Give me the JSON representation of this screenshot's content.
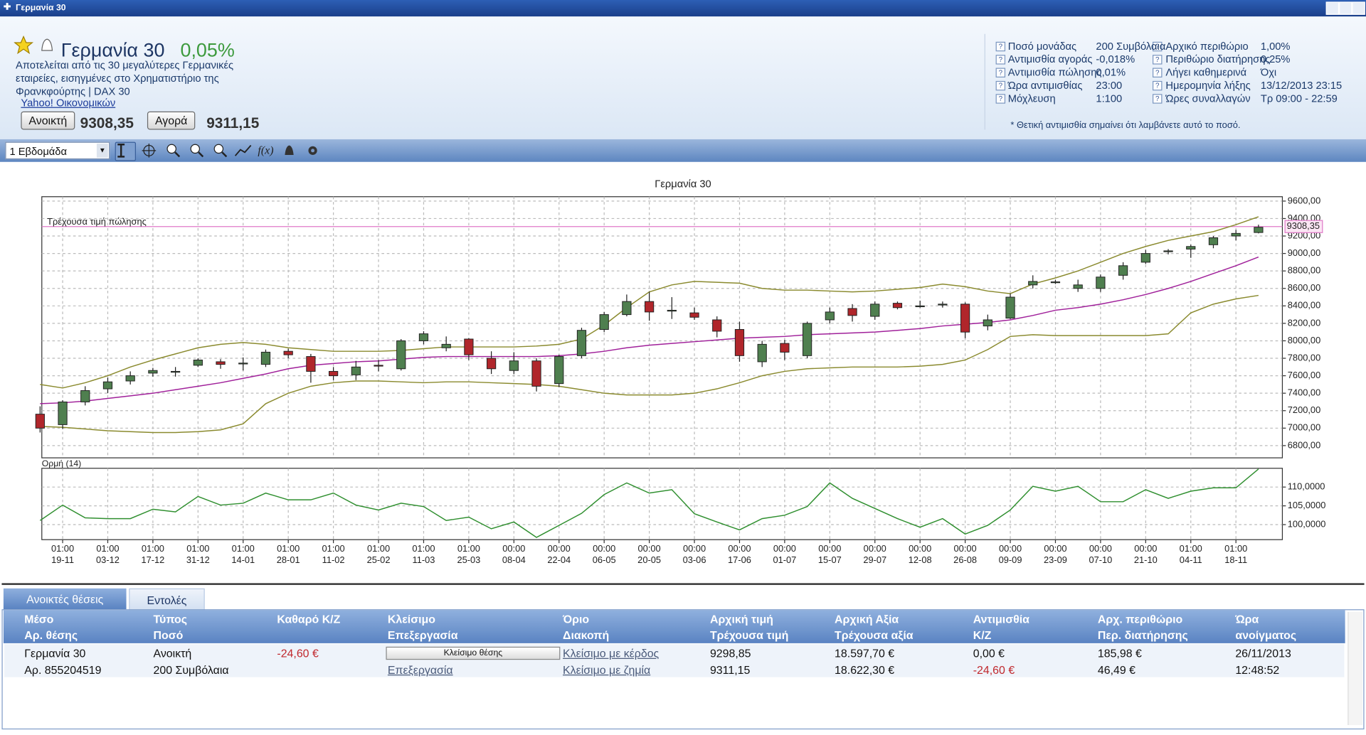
{
  "window": {
    "title": "Γερμανία 30"
  },
  "header": {
    "name": "Γερμανία 30",
    "change": "0,05%",
    "description": "Αποτελείται από τις 30 μεγαλύτερες Γερμανικές εταιρείες, εισηγμένες στο Χρηματιστήριο της Φρανκφούρτης | DAX 30",
    "source": "Yahoo! Οικονομικών",
    "sell_button": "Ανοικτή",
    "sell_price": "9308,35",
    "buy_button": "Αγορά",
    "buy_price": "9311,15"
  },
  "details": {
    "rows": [
      [
        "Ποσό μονάδας",
        "200 Συμβόλαια",
        "Αρχικό περιθώριο",
        "1,00%"
      ],
      [
        "Αντιμισθία αγοράς",
        "-0,018%",
        "Περιθώριο διατήρησης",
        "0,25%"
      ],
      [
        "Αντιμισθία πώλησης",
        "0,01%",
        "Λήγει καθημερινά",
        "Όχι"
      ],
      [
        "Ώρα αντιμισθίας",
        "23:00",
        "Ημερομηνία λήξης",
        "13/12/2013  23:15"
      ],
      [
        "Μόχλευση",
        "1:100",
        "Ώρες συναλλαγών",
        "Τρ 09:00 - 22:59"
      ]
    ],
    "note": "* Θετική αντιμισθία σημαίνει ότι λαμβάνετε αυτό το ποσό."
  },
  "toolbar": {
    "period": "1 Εβδομάδα"
  },
  "chart_data": {
    "type": "candlestick",
    "title": "Γερμανία 30",
    "grid": true,
    "up_color": "#4f7f4f",
    "down_color": "#b0262b",
    "categories": [
      null,
      "19-11",
      null,
      "03-12",
      null,
      "17-12",
      null,
      "31-12",
      null,
      "14-01",
      null,
      "28-01",
      null,
      "11-02",
      null,
      "25-02",
      null,
      "11-03",
      null,
      "25-03",
      null,
      "08-04",
      null,
      "22-04",
      null,
      "06-05",
      null,
      "20-05",
      null,
      "03-06",
      null,
      "17-06",
      null,
      "01-07",
      null,
      "15-07",
      null,
      "29-07",
      null,
      "12-08",
      null,
      "26-08",
      null,
      "09-09",
      null,
      "23-09",
      null,
      "07-10",
      null,
      "21-10",
      null,
      "04-11",
      null,
      "18-11",
      null
    ],
    "category_times": [
      null,
      "01:00",
      null,
      "01:00",
      null,
      "01:00",
      null,
      "01:00",
      null,
      "01:00",
      null,
      "01:00",
      null,
      "01:00",
      null,
      "01:00",
      null,
      "01:00",
      null,
      "01:00",
      null,
      "00:00",
      null,
      "00:00",
      null,
      "00:00",
      null,
      "00:00",
      null,
      "00:00",
      null,
      "00:00",
      null,
      "00:00",
      null,
      "00:00",
      null,
      "00:00",
      null,
      "00:00",
      null,
      "00:00",
      null,
      "00:00",
      null,
      "00:00",
      null,
      "00:00",
      null,
      "00:00",
      null,
      "01:00",
      null,
      "01:00",
      null
    ],
    "open": [
      7160,
      7040,
      7300,
      7450,
      7540,
      7630,
      7640,
      7720,
      7760,
      7740,
      7730,
      7880,
      7820,
      7650,
      7610,
      7720,
      7680,
      8000,
      7920,
      8020,
      7800,
      7660,
      7770,
      7510,
      7830,
      8130,
      8300,
      8450,
      8340,
      8320,
      8240,
      8130,
      7760,
      7970,
      7830,
      8240,
      8370,
      8280,
      8430,
      8390,
      8410,
      8420,
      8170,
      8260,
      8640,
      8670,
      8600,
      8600,
      8750,
      8900,
      9020,
      9050,
      9100,
      9200,
      9240
    ],
    "high": [
      7250,
      7320,
      7480,
      7580,
      7650,
      7690,
      7700,
      7800,
      7790,
      7810,
      7900,
      7910,
      7850,
      7700,
      7770,
      7780,
      8020,
      8110,
      8050,
      8030,
      7880,
      7870,
      7800,
      7840,
      8150,
      8330,
      8530,
      8560,
      8500,
      8380,
      8280,
      8220,
      8000,
      8010,
      8220,
      8380,
      8420,
      8450,
      8450,
      8460,
      8450,
      8440,
      8300,
      8540,
      8750,
      8700,
      8700,
      8760,
      8900,
      9040,
      9050,
      9100,
      9200,
      9270,
      9330
    ],
    "low": [
      6950,
      6990,
      7260,
      7400,
      7500,
      7590,
      7590,
      7700,
      7680,
      7660,
      7700,
      7800,
      7520,
      7550,
      7550,
      7650,
      7660,
      7960,
      7880,
      7780,
      7620,
      7620,
      7420,
      7470,
      7800,
      8100,
      8280,
      8230,
      8250,
      8240,
      8040,
      7760,
      7700,
      7780,
      7800,
      8200,
      8220,
      8240,
      8360,
      8380,
      8380,
      8030,
      8120,
      8250,
      8600,
      8650,
      8560,
      8560,
      8700,
      8880,
      8990,
      8950,
      9060,
      9150,
      9230
    ],
    "close": [
      7000,
      7300,
      7430,
      7530,
      7600,
      7660,
      7650,
      7780,
      7730,
      7745,
      7870,
      7840,
      7650,
      7600,
      7700,
      7710,
      8000,
      8080,
      7960,
      7840,
      7680,
      7770,
      7480,
      7820,
      8120,
      8300,
      8450,
      8330,
      8350,
      8270,
      8110,
      7830,
      7960,
      7870,
      8200,
      8330,
      8290,
      8420,
      8380,
      8400,
      8420,
      8100,
      8240,
      8500,
      8680,
      8675,
      8640,
      8730,
      8860,
      9000,
      9030,
      9080,
      9180,
      9230,
      9300
    ],
    "upper_band": {
      "color": "#8a8a2e",
      "values": [
        7500,
        7460,
        7520,
        7600,
        7700,
        7780,
        7850,
        7920,
        7960,
        7980,
        7960,
        7920,
        7900,
        7880,
        7880,
        7880,
        7890,
        7910,
        7930,
        7930,
        7930,
        7930,
        7940,
        7960,
        8020,
        8180,
        8380,
        8560,
        8640,
        8680,
        8670,
        8660,
        8600,
        8580,
        8580,
        8570,
        8560,
        8570,
        8590,
        8610,
        8650,
        8620,
        8570,
        8540,
        8650,
        8720,
        8800,
        8900,
        9000,
        9080,
        9150,
        9200,
        9250,
        9330,
        9420
      ]
    },
    "middle_band": {
      "color": "#a0209a",
      "values": [
        7280,
        7290,
        7310,
        7340,
        7370,
        7400,
        7440,
        7480,
        7520,
        7570,
        7620,
        7680,
        7720,
        7740,
        7760,
        7770,
        7790,
        7810,
        7820,
        7820,
        7820,
        7820,
        7820,
        7830,
        7850,
        7880,
        7920,
        7950,
        7970,
        7990,
        8010,
        8030,
        8040,
        8050,
        8070,
        8080,
        8090,
        8100,
        8120,
        8140,
        8170,
        8190,
        8210,
        8240,
        8290,
        8350,
        8380,
        8420,
        8470,
        8530,
        8600,
        8680,
        8770,
        8860,
        8960
      ]
    },
    "lower_band": {
      "color": "#8a8a2e",
      "values": [
        7020,
        7010,
        6990,
        6970,
        6960,
        6950,
        6950,
        6960,
        6980,
        7050,
        7280,
        7400,
        7480,
        7520,
        7540,
        7540,
        7530,
        7520,
        7530,
        7530,
        7520,
        7510,
        7500,
        7480,
        7440,
        7400,
        7380,
        7380,
        7380,
        7400,
        7450,
        7520,
        7600,
        7650,
        7680,
        7690,
        7700,
        7700,
        7700,
        7710,
        7730,
        7780,
        7900,
        8050,
        8070,
        8060,
        8060,
        8060,
        8060,
        8060,
        8080,
        8320,
        8420,
        8480,
        8520
      ]
    },
    "ylim": [
      6660,
      9650
    ],
    "yticks": [
      {
        "value": 6800,
        "label": "6800,00"
      },
      {
        "value": 7000,
        "label": "7000,00"
      },
      {
        "value": 7200,
        "label": "7200,00"
      },
      {
        "value": 7400,
        "label": "7400,00"
      },
      {
        "value": 7600,
        "label": "7600,00"
      },
      {
        "value": 7800,
        "label": "7800,00"
      },
      {
        "value": 8000,
        "label": "8000,00"
      },
      {
        "value": 8200,
        "label": "8200,00"
      },
      {
        "value": 8400,
        "label": "8400,00"
      },
      {
        "value": 8600,
        "label": "8600,00"
      },
      {
        "value": 8800,
        "label": "8800,00"
      },
      {
        "value": 9000,
        "label": "9000,00"
      },
      {
        "value": 9200,
        "label": "9200,00"
      },
      {
        "value": 9400,
        "label": "9400,00"
      },
      {
        "value": 9600,
        "label": "9600,00"
      }
    ],
    "current_price": {
      "value": 9308.35,
      "label": "9308,35",
      "text": "Τρέχουσα τιμή πώλησης",
      "color": "#e07ac8"
    },
    "momentum": {
      "label": "Ορμή (14)",
      "color": "#2f8f2f",
      "values": [
        101.1,
        105.2,
        101.8,
        101.6,
        101.6,
        104.1,
        103.4,
        107.5,
        105.2,
        105.7,
        108.4,
        106.6,
        106.6,
        108.4,
        105.2,
        103.9,
        105.7,
        104.8,
        101.1,
        102,
        98.9,
        100.7,
        96.6,
        99.8,
        103,
        108,
        111.1,
        108.4,
        109.3,
        102.9,
        100.7,
        98.6,
        101.6,
        102.5,
        104.8,
        111.1,
        107,
        104.3,
        101.6,
        99.3,
        101.6,
        97.5,
        99.8,
        103.9,
        110.2,
        108.9,
        110.2,
        106.1,
        106.1,
        109.3,
        107,
        108.9,
        109.8,
        109.8,
        114.8
      ],
      "ylim": [
        96,
        115
      ],
      "yticks": [
        {
          "value": 100,
          "label": "100,0000"
        },
        {
          "value": 105,
          "label": "105,0000"
        },
        {
          "value": 110,
          "label": "110,0000"
        }
      ]
    }
  },
  "positions": {
    "tabs": [
      "Ανοικτές θέσεις",
      "Εντολές"
    ],
    "headers": [
      [
        "Μέσο",
        "Αρ. θέσης"
      ],
      [
        "Τύπος",
        "Ποσό"
      ],
      [
        "Καθαρό Κ/Ζ"
      ],
      [
        "Κλείσιμο",
        "Επεξεργασία"
      ],
      [
        "Όριο",
        "Διακοπή"
      ],
      [
        "Αρχική τιμή",
        "Τρέχουσα τιμή"
      ],
      [
        "Αρχική Αξία",
        "Τρέχουσα αξία"
      ],
      [
        "Αντιμισθία",
        "Κ/Ζ"
      ],
      [
        "Αρχ. περιθώριο",
        "Περ. διατήρησης"
      ],
      [
        "Ώρα",
        "ανοίγματος"
      ]
    ],
    "rows": [
      [
        "Γερμανία 30",
        "Ανοικτή",
        "-24,60 €",
        "Κλείσιμο θέσης",
        "Κλείσιμο με κέρδος",
        "9298,85",
        "18.597,70 €",
        "0,00 €",
        "185,98 €",
        "26/11/2013"
      ],
      [
        "Αρ. 855204519",
        "200 Συμβόλαια",
        null,
        "Επεξεργασία",
        "Κλείσιμο με ζημία",
        "9311,15",
        "18.622,30 €",
        "-24,60 €",
        "46,49 €",
        "12:48:52"
      ]
    ]
  }
}
